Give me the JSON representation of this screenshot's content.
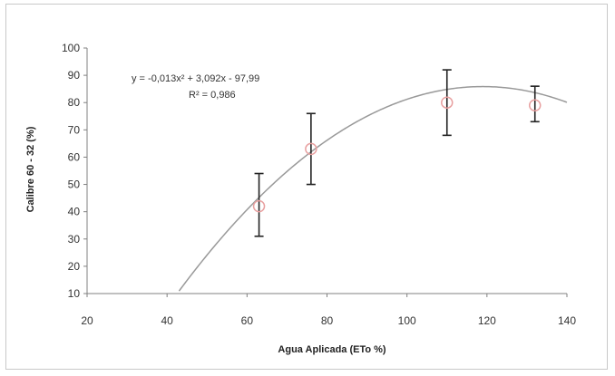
{
  "chart_data": {
    "type": "scatter",
    "xlabel": "Agua Aplicada  (ETo %)",
    "ylabel": "Calibre  60 - 32 (%)",
    "xlim": [
      20,
      140
    ],
    "ylim": [
      10,
      100
    ],
    "x_ticks": [
      "20",
      "40",
      "60",
      "80",
      "100",
      "120",
      "140"
    ],
    "y_ticks": [
      "10",
      "20",
      "30",
      "40",
      "50",
      "60",
      "70",
      "80",
      "90",
      "100"
    ],
    "grid": false,
    "series": [
      {
        "x": [
          63,
          76,
          110,
          132
        ],
        "y": [
          42,
          63,
          80,
          79
        ],
        "error_low": [
          31,
          50,
          68,
          73
        ],
        "error_high": [
          54,
          76,
          92,
          86
        ],
        "marker": "open-circle",
        "color": "#e8a0a0"
      }
    ],
    "trendline": {
      "type": "polynomial",
      "coefficients": {
        "a": -0.013,
        "b": 3.092,
        "c": -97.99
      },
      "color": "#999999",
      "equation_text": "y = -0,013x² + 3,092x - 97,99",
      "r2_text": "R² = 0,986"
    }
  }
}
